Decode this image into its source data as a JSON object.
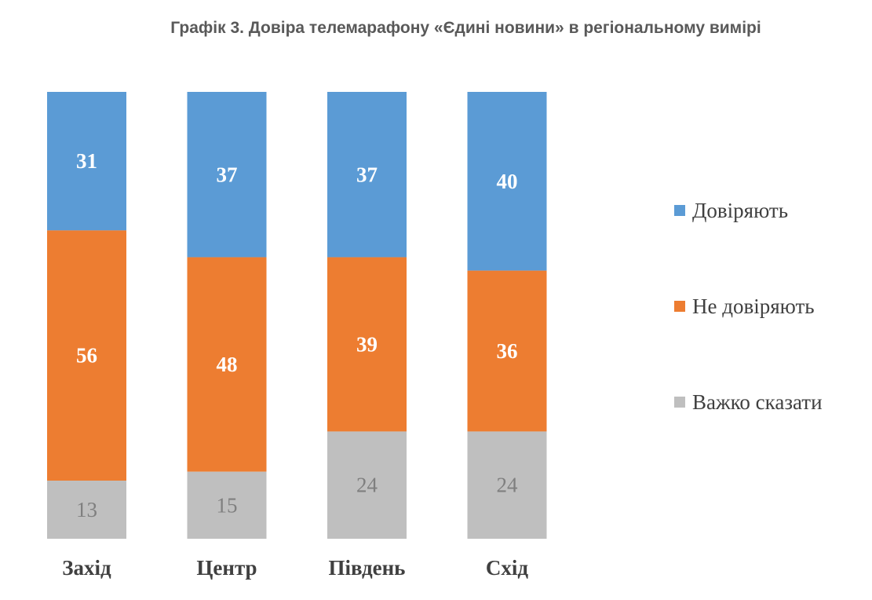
{
  "chart_data": {
    "type": "bar",
    "stacked": true,
    "title": "Графік 3. Довіра телемарафону «Єдині новини» в регіональному вимірі",
    "xlabel": "",
    "ylabel": "",
    "categories": [
      "Захід",
      "Центр",
      "Південь",
      "Схід"
    ],
    "series": [
      {
        "name": "Довіряють",
        "values": [
          31,
          37,
          37,
          40
        ],
        "color": "#5b9bd5"
      },
      {
        "name": "Не довіряють",
        "values": [
          56,
          48,
          39,
          36
        ],
        "color": "#ed7d31"
      },
      {
        "name": "Важко сказати",
        "values": [
          13,
          15,
          24,
          24
        ],
        "color": "#bfbfbf"
      }
    ],
    "grid": false,
    "legend_position": "right"
  }
}
